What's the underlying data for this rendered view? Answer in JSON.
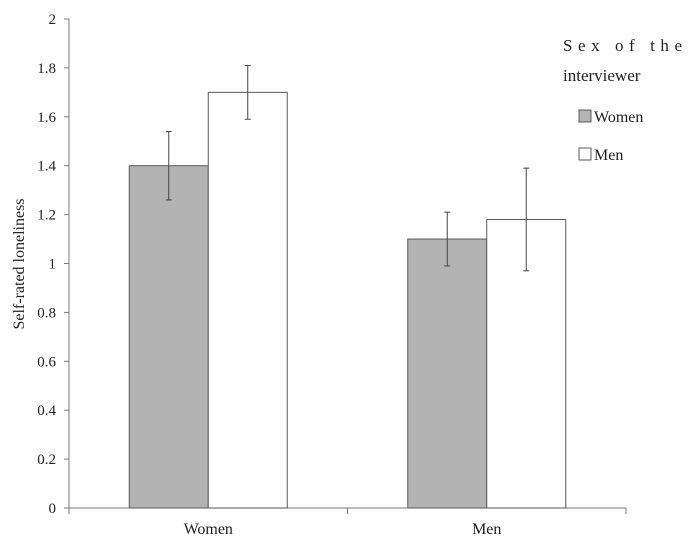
{
  "chart_data": {
    "type": "bar",
    "title": "",
    "xlabel": "",
    "ylabel": "Self-rated loneliness",
    "ylim": [
      0,
      2
    ],
    "yticks": [
      0,
      0.2,
      0.4,
      0.6,
      0.8,
      1,
      1.2,
      1.4,
      1.6,
      1.8,
      2
    ],
    "ytick_labels": [
      "0",
      "0.2",
      "0.4",
      "0.6",
      "0.8",
      "1",
      "1.2",
      "1.4",
      "1.6",
      "1.8",
      "2"
    ],
    "grid": false,
    "categories": [
      "Women",
      "Men"
    ],
    "series": [
      {
        "name": "Women",
        "color": "#b3b3b3",
        "values": [
          1.4,
          1.1
        ],
        "error_low": [
          1.26,
          0.99
        ],
        "error_high": [
          1.54,
          1.21
        ]
      },
      {
        "name": "Men",
        "color": "#ffffff",
        "values": [
          1.7,
          1.18
        ],
        "error_low": [
          1.59,
          0.97
        ],
        "error_high": [
          1.81,
          1.39
        ]
      }
    ],
    "legend": {
      "title_lines": [
        "Sex of the",
        "interviewer"
      ],
      "position": "top-right"
    },
    "colors": {
      "bar_outline": "#5a5a5a",
      "axis": "#7a7a7a",
      "error_bar": "#444444"
    }
  }
}
